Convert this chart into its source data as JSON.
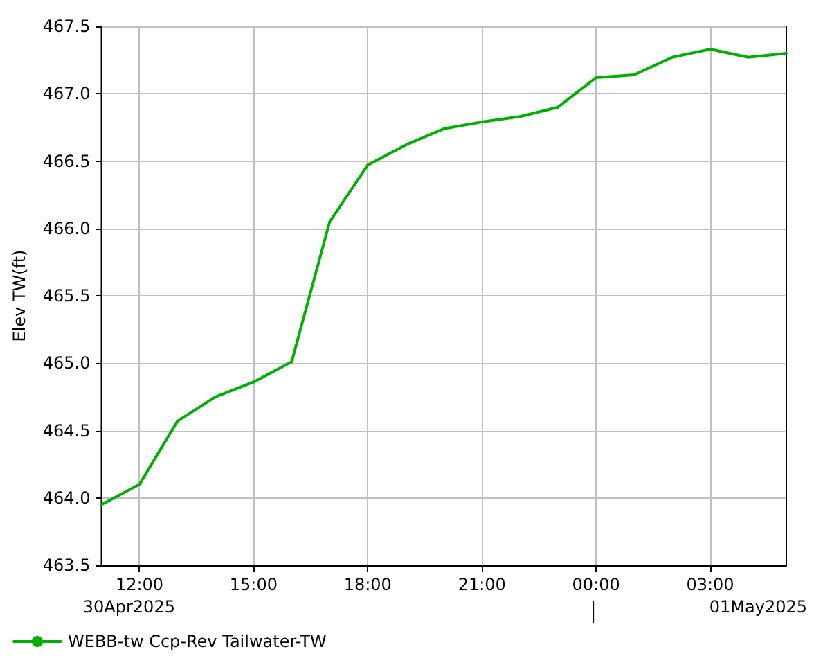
{
  "chart_data": {
    "type": "line",
    "ylabel": "Elev TW(ft)",
    "x": [
      "2025-04-30T11:00",
      "2025-04-30T12:00",
      "2025-04-30T13:00",
      "2025-04-30T14:00",
      "2025-04-30T15:00",
      "2025-04-30T16:00",
      "2025-04-30T17:00",
      "2025-04-30T18:00",
      "2025-04-30T19:00",
      "2025-04-30T20:00",
      "2025-04-30T21:00",
      "2025-04-30T22:00",
      "2025-04-30T23:00",
      "2025-05-01T00:00",
      "2025-05-01T01:00",
      "2025-05-01T02:00",
      "2025-05-01T03:00",
      "2025-05-01T04:00",
      "2025-05-01T05:00"
    ],
    "series": [
      {
        "name": "WEBB-tw Ccp-Rev Tailwater-TW",
        "color": "#00b000",
        "values": [
          463.95,
          464.1,
          464.57,
          464.75,
          464.86,
          465.01,
          466.05,
          466.47,
          466.62,
          466.74,
          466.79,
          466.83,
          466.9,
          467.12,
          467.14,
          467.27,
          467.33,
          467.27,
          467.3
        ]
      }
    ],
    "xlim": [
      "2025-04-30T11:00",
      "2025-05-01T05:00"
    ],
    "xticks": [
      {
        "value": "2025-04-30T12:00",
        "label": "12:00"
      },
      {
        "value": "2025-04-30T15:00",
        "label": "15:00"
      },
      {
        "value": "2025-04-30T18:00",
        "label": "18:00"
      },
      {
        "value": "2025-04-30T21:00",
        "label": "21:00"
      },
      {
        "value": "2025-05-01T00:00",
        "label": "00:00"
      },
      {
        "value": "2025-05-01T03:00",
        "label": "03:00"
      }
    ],
    "ylim": [
      463.5,
      467.5
    ],
    "yticks": [
      {
        "value": 463.5,
        "label": "463.5"
      },
      {
        "value": 464,
        "label": "464.0"
      },
      {
        "value": 464.5,
        "label": "464.5"
      },
      {
        "value": 465,
        "label": "465.0"
      },
      {
        "value": 465.5,
        "label": "465.5"
      },
      {
        "value": 466,
        "label": "466.0"
      },
      {
        "value": 466.5,
        "label": "466.5"
      },
      {
        "value": 467,
        "label": "467.0"
      },
      {
        "value": 467.5,
        "label": "467.5"
      }
    ],
    "annotations": [
      "30Apr2025",
      "01May2025"
    ],
    "grid": true,
    "legend": "bottom left",
    "marker": "none",
    "line_style": "solid"
  }
}
